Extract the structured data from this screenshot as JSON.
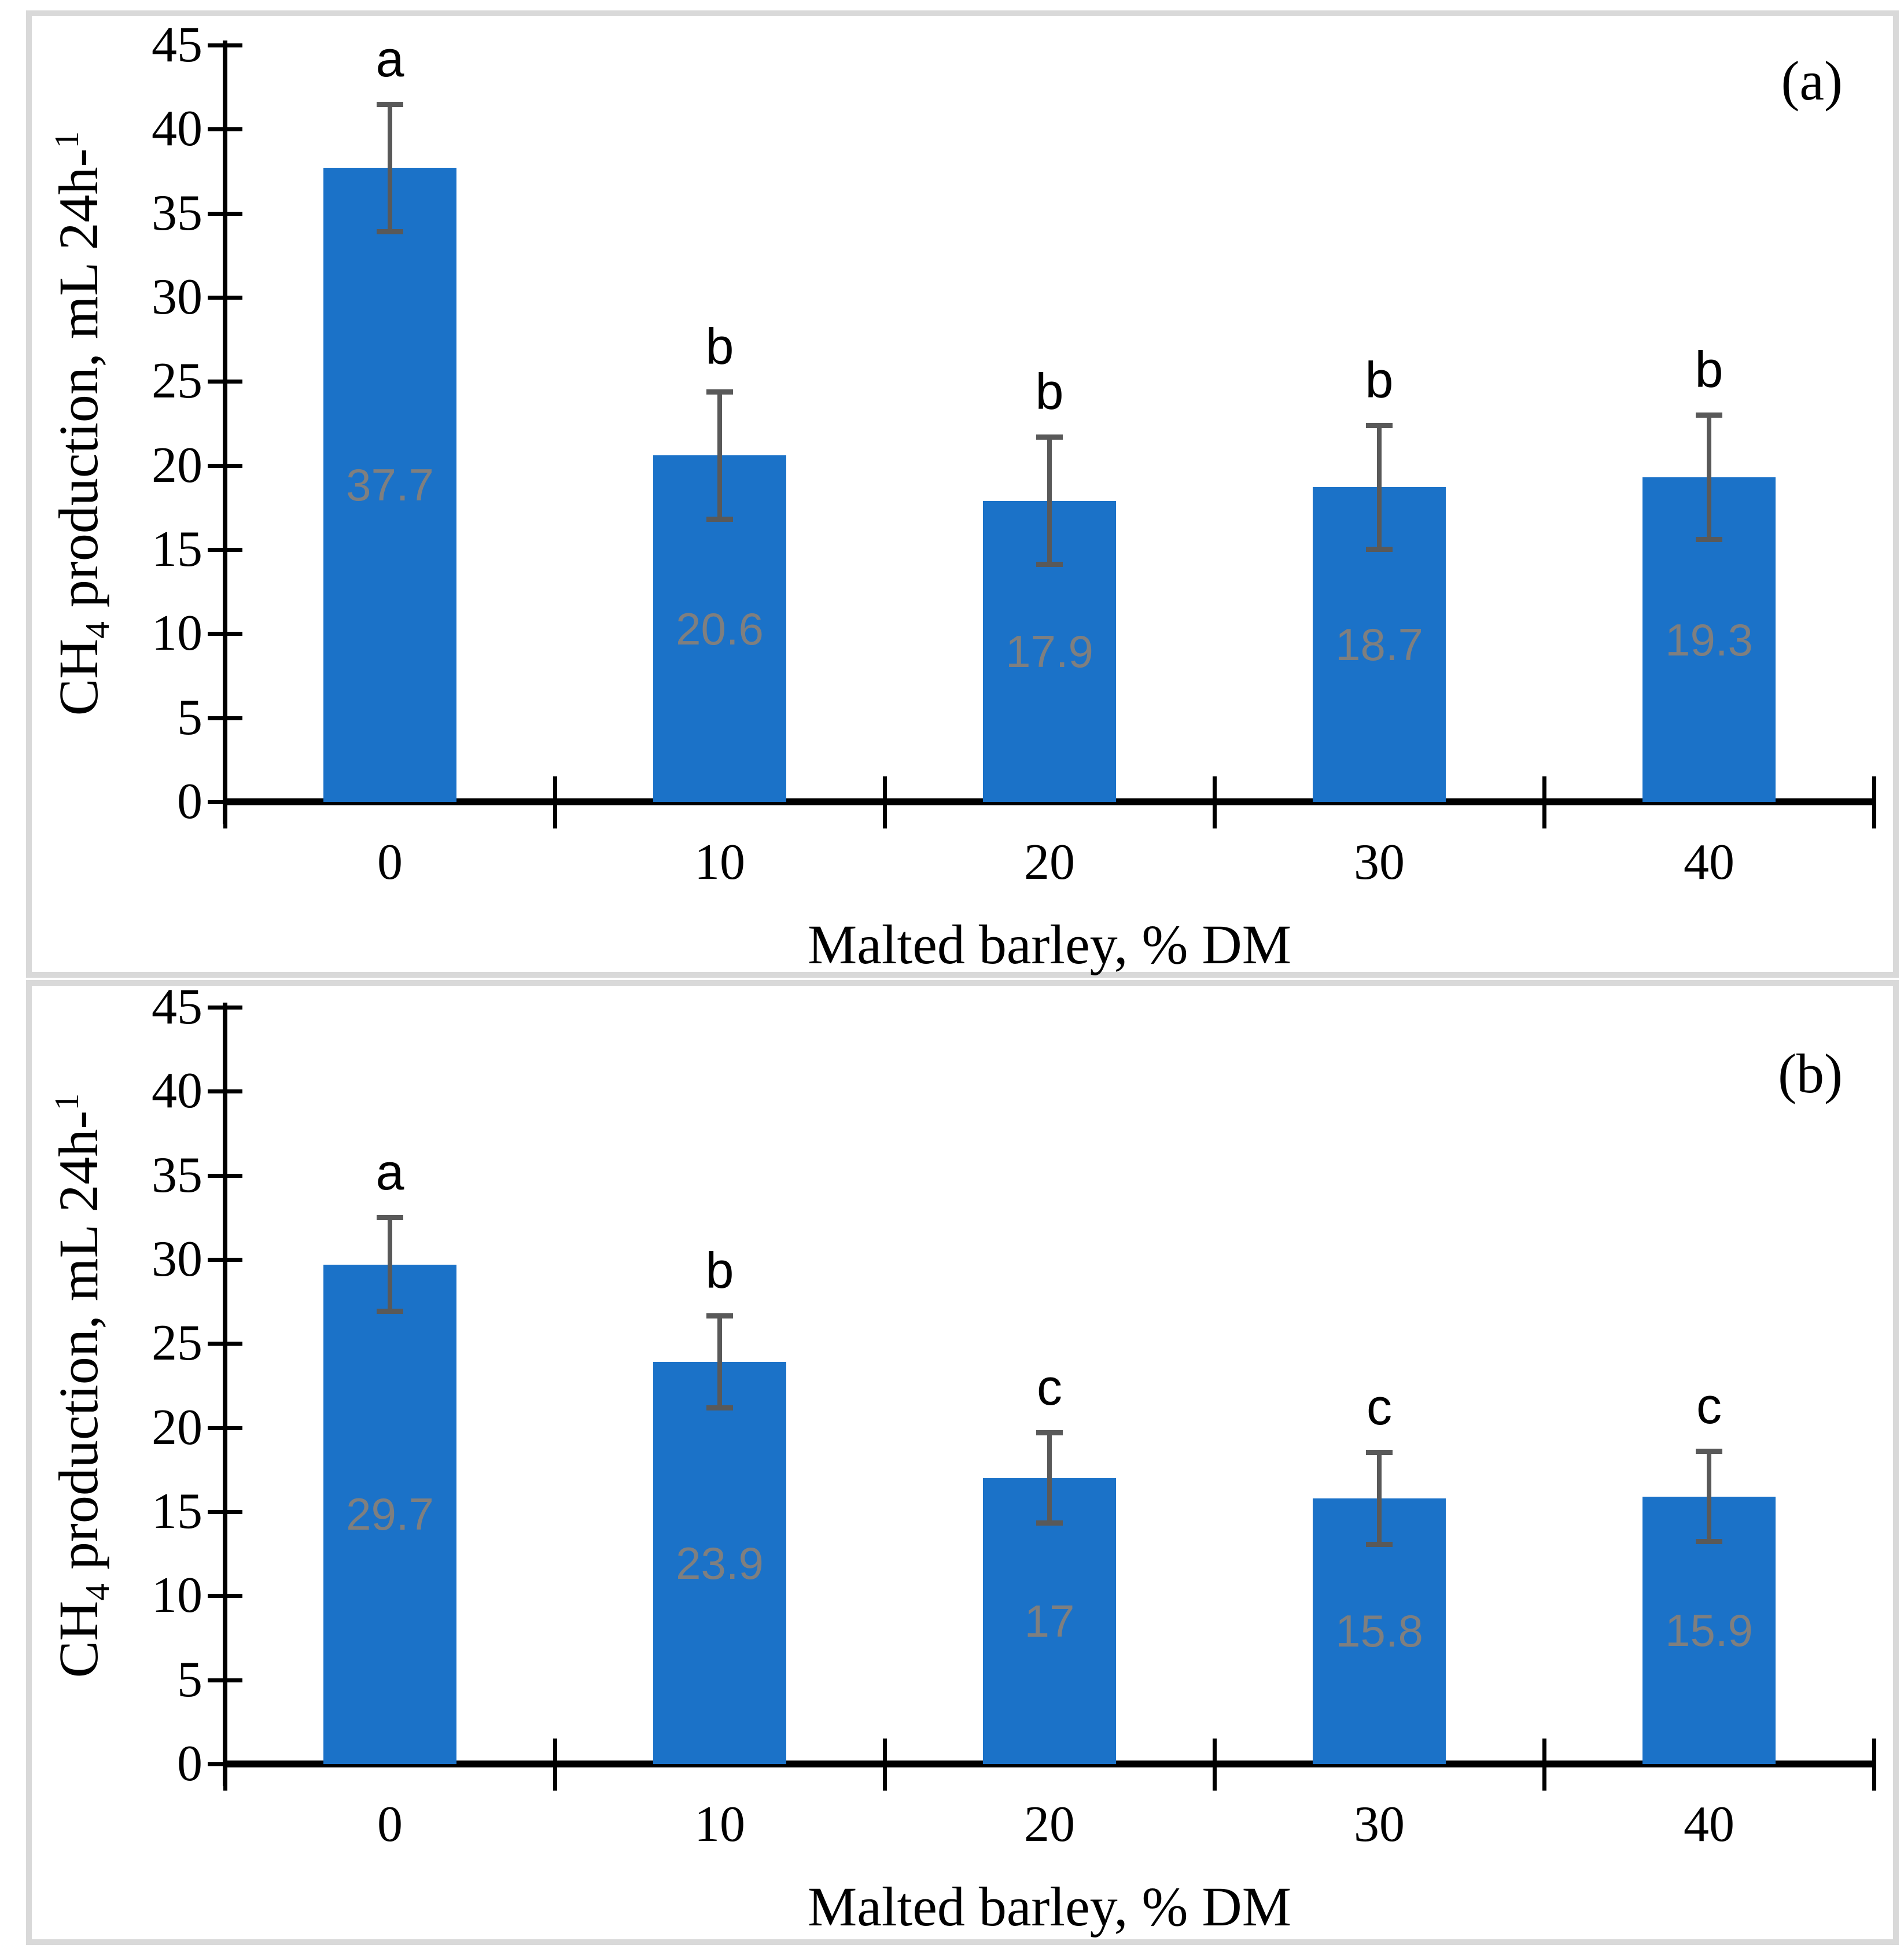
{
  "chart_data": [
    {
      "type": "bar",
      "panel": "top",
      "corner_label": "(a)",
      "xlabel": "Malted barley, % DM",
      "ylabel": "CH4 production, mL 24h-1",
      "ylabel_parts": {
        "pre": "CH",
        "sub": "4",
        "mid": " production, mL 24h-",
        "sup": "1"
      },
      "categories": [
        "0",
        "10",
        "20",
        "30",
        "40"
      ],
      "values": [
        37.7,
        20.6,
        17.9,
        18.7,
        19.3
      ],
      "data_labels": [
        "37.7",
        "20.6",
        "17.9",
        "18.7",
        "19.3"
      ],
      "sig_letters": [
        "a",
        "b",
        "b",
        "b",
        "b"
      ],
      "errors": [
        3.8,
        3.8,
        3.8,
        3.7,
        3.7
      ],
      "ylim": [
        0,
        45
      ],
      "ytick_step": 5,
      "ytick_labels": [
        "0",
        "5",
        "10",
        "15",
        "20",
        "25",
        "30",
        "35",
        "40",
        "45"
      ],
      "grid": "off",
      "legend": "none",
      "bar_color": "#1B72C8",
      "error_color": "#595959",
      "data_label_color": "#7F7F7F"
    },
    {
      "type": "bar",
      "panel": "bottom",
      "corner_label": "(b)",
      "xlabel": "Malted barley, % DM",
      "ylabel": "CH4 production, mL 24h-1",
      "ylabel_parts": {
        "pre": "CH",
        "sub": "4",
        "mid": " production, mL 24h-",
        "sup": "1"
      },
      "categories": [
        "0",
        "10",
        "20",
        "30",
        "40"
      ],
      "values": [
        29.7,
        23.9,
        17,
        15.8,
        15.9
      ],
      "data_labels": [
        "29.7",
        "23.9",
        "17",
        "15.8",
        "15.9"
      ],
      "sig_letters": [
        "a",
        "b",
        "c",
        "c",
        "c"
      ],
      "errors": [
        2.8,
        2.75,
        2.7,
        2.75,
        2.7
      ],
      "ylim": [
        0,
        45
      ],
      "ytick_step": 5,
      "ytick_labels": [
        "0",
        "5",
        "10",
        "15",
        "20",
        "25",
        "30",
        "35",
        "40",
        "45"
      ],
      "grid": "off",
      "legend": "none",
      "bar_color": "#1B72C8",
      "error_color": "#595959",
      "data_label_color": "#7F7F7F"
    }
  ]
}
